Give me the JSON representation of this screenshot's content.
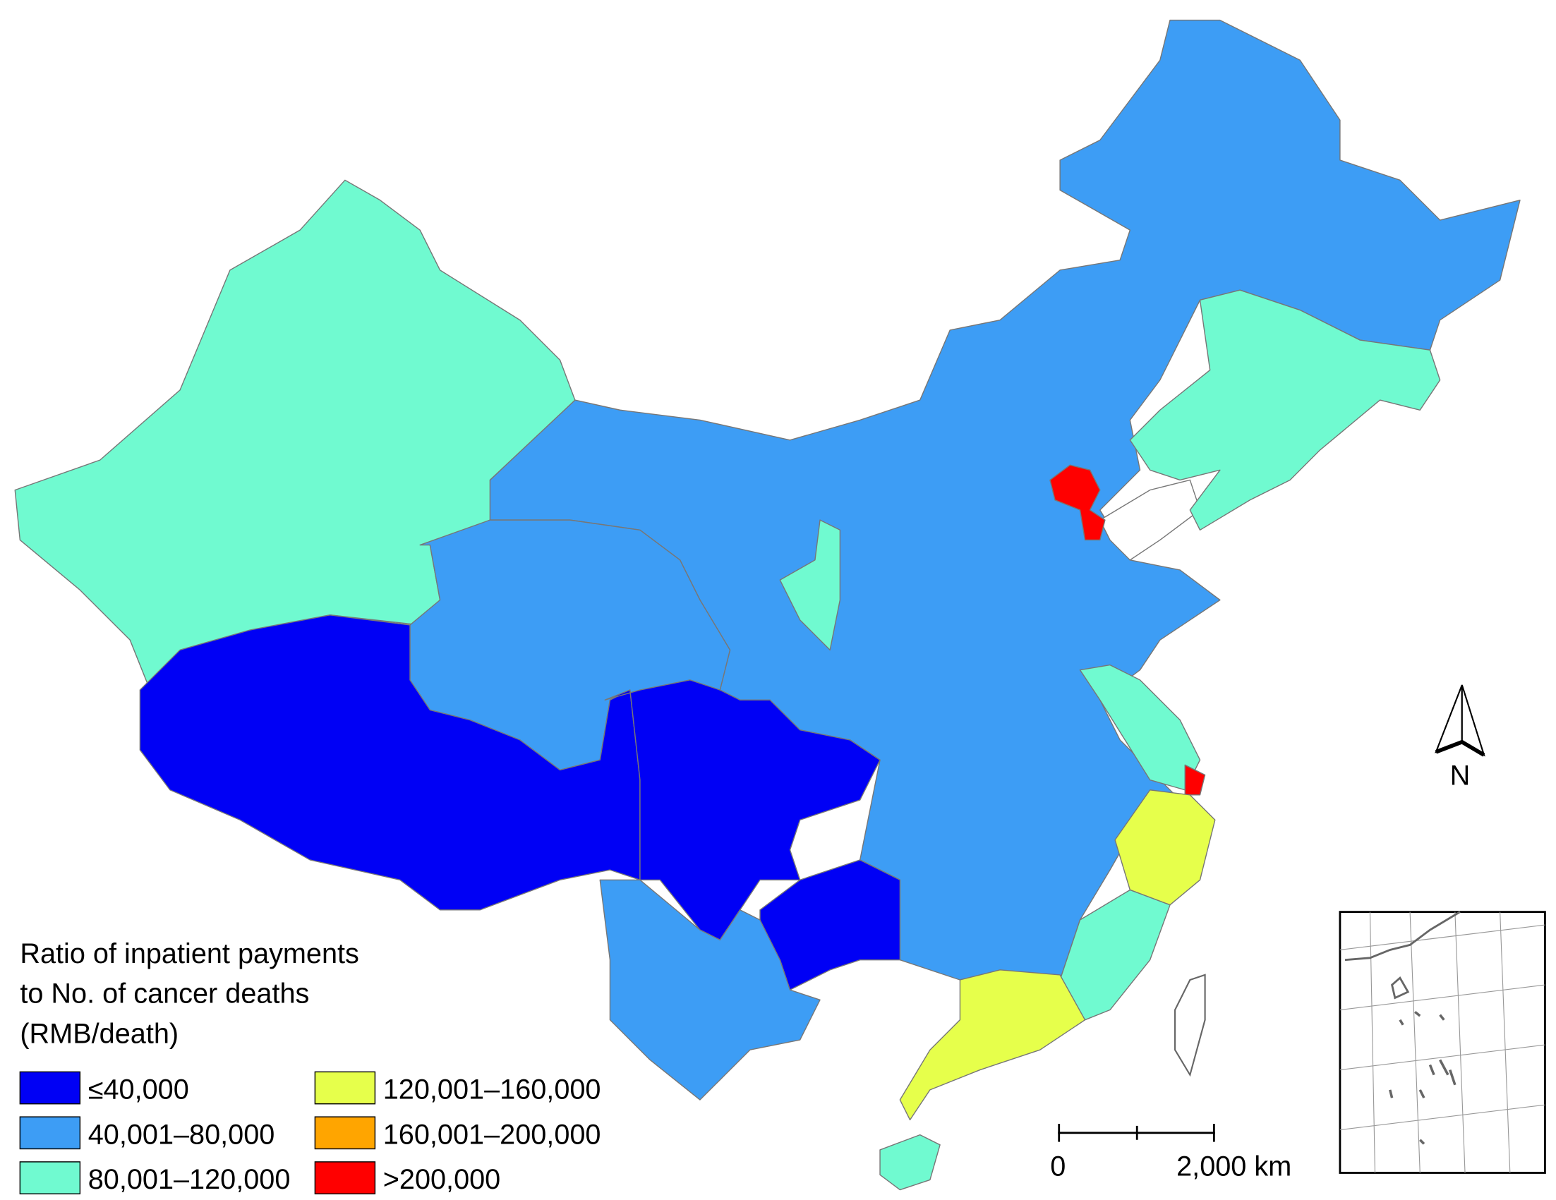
{
  "legend": {
    "title": [
      "Ratio of inpatient payments",
      "to No. of cancer deaths",
      "(RMB/death)"
    ],
    "items": [
      {
        "label": "≤40,000",
        "color": "#0000f5"
      },
      {
        "label": "40,001–80,000",
        "color": "#3d9df5"
      },
      {
        "label": "80,001–120,000",
        "color": "#70fad0"
      },
      {
        "label": "120,001–160,000",
        "color": "#e6ff4b"
      },
      {
        "label": "160,001–200,000",
        "color": "#ffa500"
      },
      {
        "label": ">200,000",
        "color": "#ff0000"
      }
    ]
  },
  "north_label": "N",
  "scale_bar": {
    "labels": [
      "0",
      "2,000 km"
    ]
  }
}
